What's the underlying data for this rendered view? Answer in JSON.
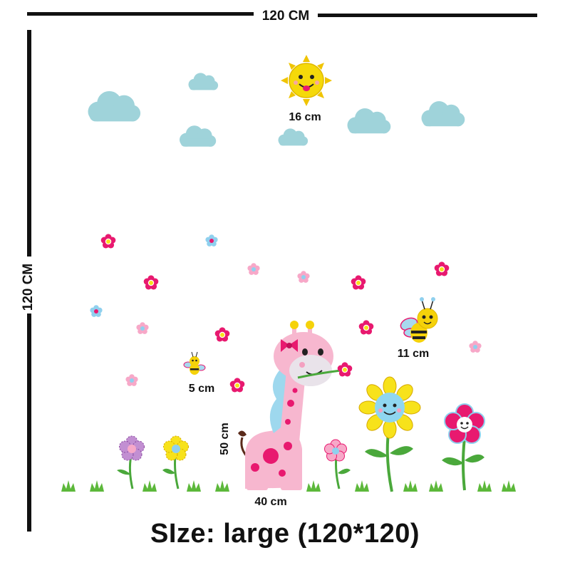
{
  "dimensions": {
    "width_label": "120 CM",
    "height_label": "120 CM"
  },
  "labels": {
    "sun_size": "16 cm",
    "big_bee_size": "11 cm",
    "small_bee_size": "5 cm",
    "giraffe_height": "50 cm",
    "giraffe_width": "40 cm"
  },
  "caption": "SIze: large (120*120)",
  "colors": {
    "cloud": "#9fd3da",
    "sun": "#f5d90a",
    "sun_ray": "#f0c400",
    "giraffe": "#f7b7cf",
    "giraffe_spot": "#e8196f",
    "mane": "#9ed8ee",
    "flower_magenta": "#e8196f",
    "flower_pink": "#f7a8c8",
    "flower_blue": "#8fd0ee",
    "flower_yellow": "#f7e21b",
    "sunflower_face": "#8fd6f0",
    "stem": "#4aa83b",
    "grass": "#5cb83a",
    "bee_body": "#f5d20a",
    "bee_wing": "#a8d8ee"
  }
}
